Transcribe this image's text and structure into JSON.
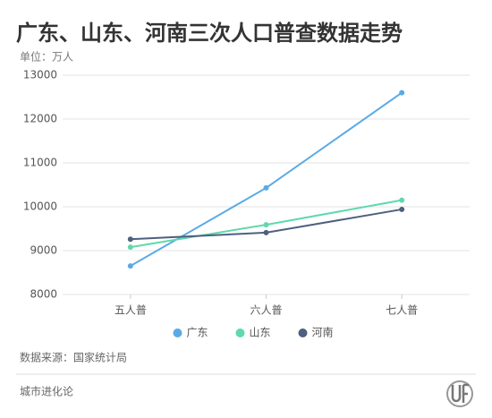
{
  "chart_data": {
    "type": "line",
    "title": "广东、山东、河南三次人口普查数据走势",
    "subtitle": "单位：万人",
    "source": "数据来源：国家统计局",
    "footer": "城市进化论",
    "categories": [
      "五人普",
      "六人普",
      "七人普"
    ],
    "series": [
      {
        "name": "广东",
        "color": "#5aaae6",
        "values": [
          8650,
          10430,
          12600
        ]
      },
      {
        "name": "山东",
        "color": "#5fd9ab",
        "values": [
          9080,
          9590,
          10150
        ]
      },
      {
        "name": "河南",
        "color": "#4f5f80",
        "values": [
          9260,
          9410,
          9940
        ]
      }
    ],
    "ylim": [
      8000,
      13000
    ],
    "yticks": [
      8000,
      9000,
      10000,
      11000,
      12000,
      13000
    ],
    "grid": true,
    "legend": "bottom"
  }
}
